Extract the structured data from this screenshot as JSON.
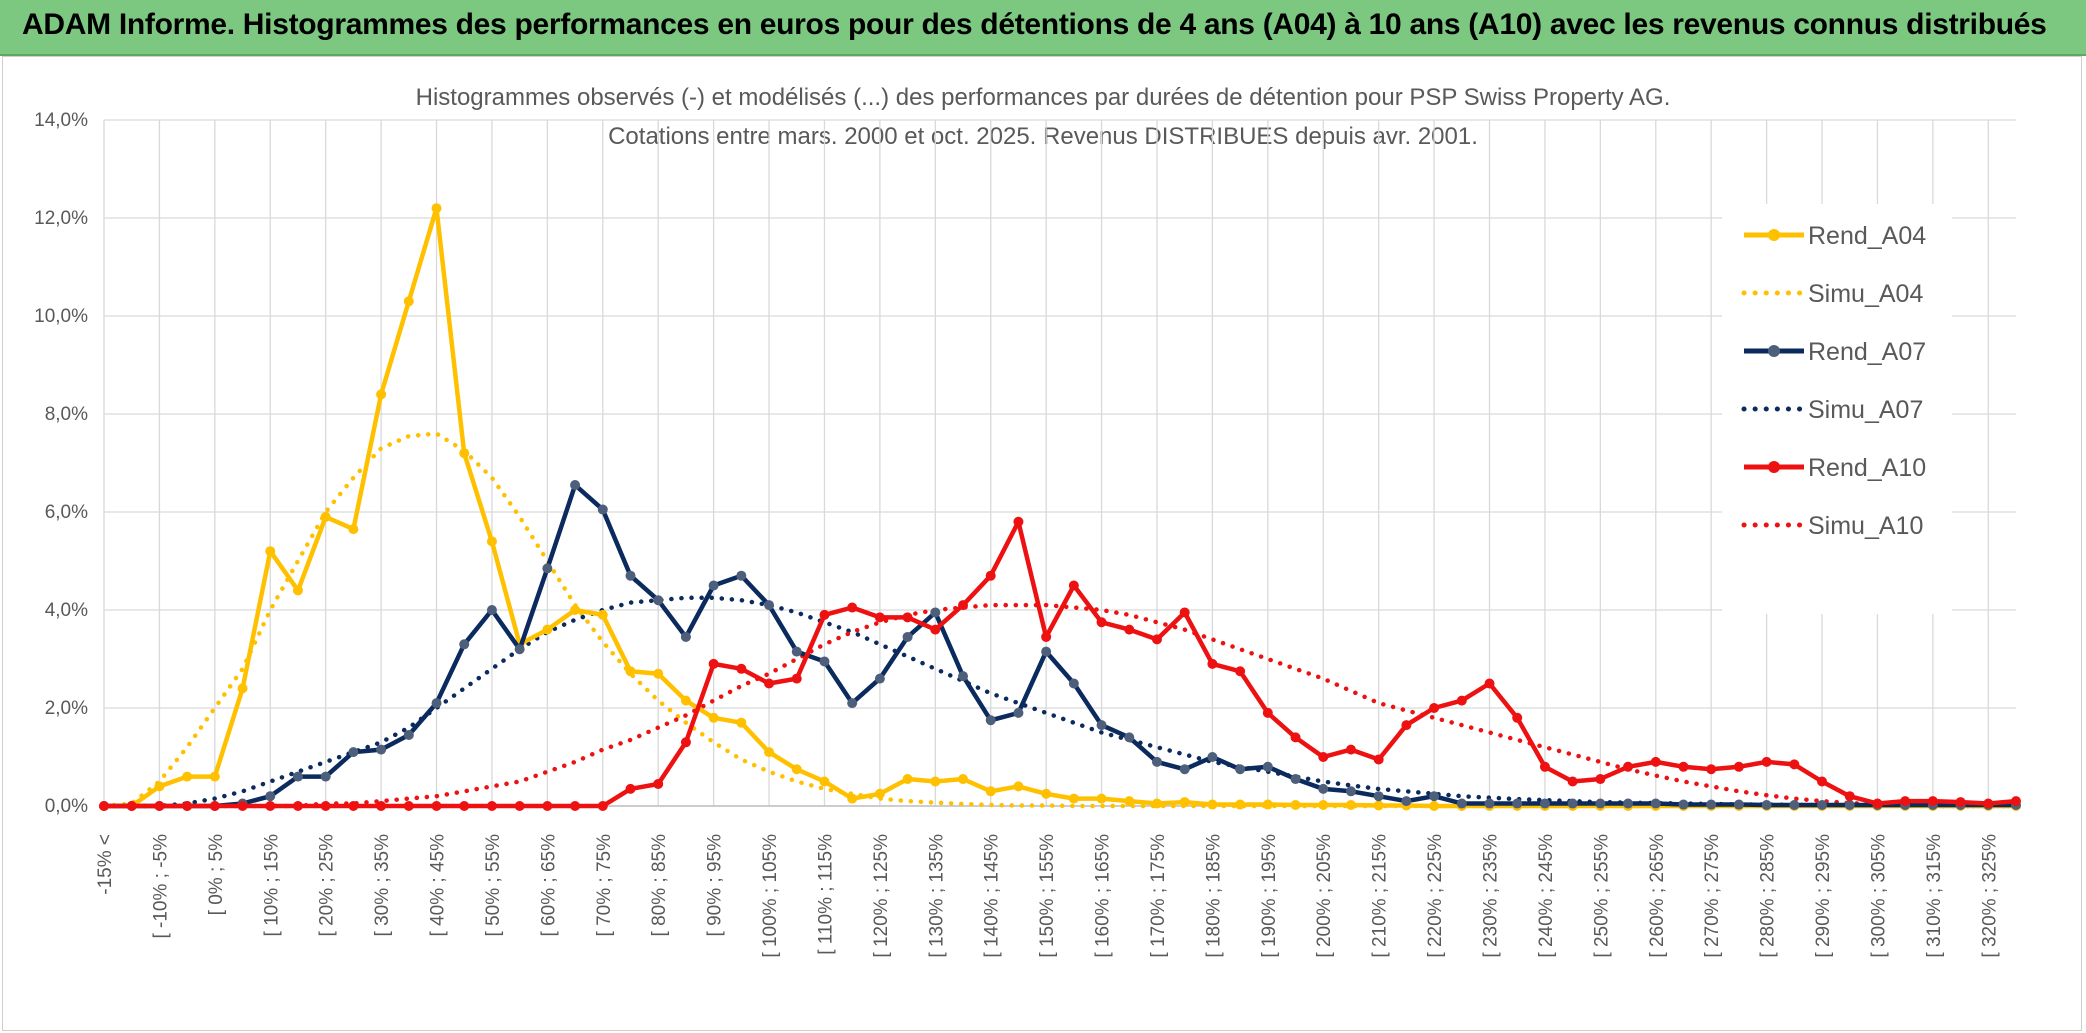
{
  "banner": {
    "title": "ADAM Informe. Histogrammes des performances en euros pour des détentions de 4 ans (A04) à 10 ans (A10) avec les revenus connus distribués"
  },
  "chart_data": {
    "type": "line",
    "title": "Histogrammes observés (-) et modélisés (...) des performances par durées de détention pour PSP Swiss Property AG.",
    "subtitle": "Cotations entre mars. 2000 et oct. 2025. Revenus DISTRIBUES depuis avr. 2001.",
    "xlabel": "",
    "ylabel": "",
    "ylim": [
      0,
      14
    ],
    "y_ticks": [
      "0,0%",
      "2,0%",
      "4,0%",
      "6,0%",
      "8,0%",
      "10,0%",
      "12,0%",
      "14,0%"
    ],
    "grid": true,
    "legend_position": "right",
    "x_tick_labels": [
      "-15% <",
      "[ -10% ; -5%",
      "[ 0% ; 5%",
      "[ 10% ; 15%",
      "[ 20% ; 25%",
      "[ 30% ; 35%",
      "[ 40% ; 45%",
      "[ 50% ; 55%",
      "[ 60% ; 65%",
      "[ 70% ; 75%",
      "[ 80% ; 85%",
      "[ 90% ; 95%",
      "[ 100% ; 105%",
      "[ 110% ; 115%",
      "[ 120% ; 125%",
      "[ 130% ; 135%",
      "[ 140% ; 145%",
      "[ 150% ; 155%",
      "[ 160% ; 165%",
      "[ 170% ; 175%",
      "[ 180% ; 185%",
      "[ 190% ; 195%",
      "[ 200% ; 205%",
      "[ 210% ; 215%",
      "[ 220% ; 225%",
      "[ 230% ; 235%",
      "[ 240% ; 245%",
      "[ 250% ; 255%",
      "[ 260% ; 265%",
      "[ 270% ; 275%",
      "[ 280% ; 285%",
      "[ 290% ; 295%",
      "[ 300% ; 305%",
      "[ 310% ; 315%",
      "[ 320% ; 325%"
    ],
    "n_categories": 70,
    "series": [
      {
        "name": "Rend_A04",
        "color": "#ffc000",
        "style": "solid",
        "markers": true,
        "values": [
          0,
          0,
          0.4,
          0.6,
          0.6,
          2.4,
          5.2,
          4.4,
          5.9,
          5.65,
          8.4,
          10.3,
          12.2,
          7.2,
          5.4,
          3.3,
          3.6,
          4.0,
          3.9,
          2.75,
          2.7,
          2.15,
          1.8,
          1.7,
          1.1,
          0.75,
          0.5,
          0.15,
          0.25,
          0.55,
          0.5,
          0.55,
          0.3,
          0.4,
          0.25,
          0.15,
          0.15,
          0.1,
          0.05,
          0.08,
          0.03,
          0.03,
          0.03,
          0.02,
          0.02,
          0.02,
          0.01,
          0.01,
          0.0,
          0.0,
          0.0,
          0.0,
          0.0,
          0.0,
          0.0,
          0.0,
          0.0,
          0.0,
          0.0,
          0.0,
          0.0,
          0.0,
          0.0,
          0.0,
          0.0,
          0.0,
          0.0,
          0.0,
          0.0,
          0.0
        ]
      },
      {
        "name": "Simu_A04",
        "color": "#ffc000",
        "style": "dotted",
        "markers": false,
        "values": [
          0,
          0.05,
          0.5,
          1.2,
          2.0,
          2.8,
          4.0,
          5.0,
          6.0,
          6.7,
          7.3,
          7.55,
          7.6,
          7.25,
          6.7,
          5.9,
          5.0,
          4.1,
          3.35,
          2.7,
          2.15,
          1.7,
          1.3,
          0.95,
          0.7,
          0.5,
          0.35,
          0.25,
          0.15,
          0.1,
          0.07,
          0.04,
          0.02,
          0.01,
          0.01,
          0.0,
          0.0,
          0.0,
          0.0,
          0.0,
          0.0,
          0.0,
          0.0,
          0.0,
          0.0,
          0.0,
          0.0,
          0.0,
          0.0,
          0.0,
          0.0,
          0.0,
          0.0,
          0.0,
          0.0,
          0.0,
          0.0,
          0.0,
          0.0,
          0.0,
          0.0,
          0.0,
          0.0,
          0.0,
          0.0,
          0.0,
          0.0,
          0.0,
          0.0,
          0.0
        ]
      },
      {
        "name": "Rend_A07",
        "color": "#0b2a5e",
        "style": "solid",
        "markers": true,
        "values": [
          0,
          0,
          0,
          0,
          0,
          0.05,
          0.2,
          0.6,
          0.6,
          1.1,
          1.15,
          1.45,
          2.1,
          3.3,
          4.0,
          3.2,
          4.85,
          6.55,
          6.05,
          4.7,
          4.2,
          3.45,
          4.5,
          4.7,
          4.1,
          3.15,
          2.95,
          2.1,
          2.6,
          3.45,
          3.95,
          2.65,
          1.75,
          1.9,
          3.15,
          2.5,
          1.65,
          1.4,
          0.9,
          0.75,
          1.0,
          0.75,
          0.8,
          0.55,
          0.35,
          0.3,
          0.2,
          0.1,
          0.2,
          0.05,
          0.05,
          0.05,
          0.05,
          0.05,
          0.05,
          0.05,
          0.05,
          0.03,
          0.03,
          0.03,
          0.02,
          0.02,
          0.02,
          0.02,
          0.02,
          0.02,
          0.02,
          0.02,
          0.02,
          0.02
        ]
      },
      {
        "name": "Simu_A07",
        "color": "#0b2a5e",
        "style": "dotted",
        "markers": false,
        "values": [
          0,
          0,
          0,
          0.05,
          0.15,
          0.3,
          0.5,
          0.7,
          0.9,
          1.1,
          1.3,
          1.6,
          2.0,
          2.4,
          2.8,
          3.2,
          3.55,
          3.8,
          4.0,
          4.15,
          4.2,
          4.25,
          4.25,
          4.2,
          4.1,
          3.95,
          3.75,
          3.55,
          3.3,
          3.05,
          2.8,
          2.55,
          2.3,
          2.1,
          1.9,
          1.7,
          1.5,
          1.35,
          1.2,
          1.05,
          0.9,
          0.8,
          0.7,
          0.6,
          0.5,
          0.42,
          0.35,
          0.3,
          0.25,
          0.2,
          0.17,
          0.14,
          0.12,
          0.1,
          0.08,
          0.07,
          0.06,
          0.05,
          0.04,
          0.03,
          0.03,
          0.02,
          0.02,
          0.01,
          0.01,
          0.01,
          0.0,
          0.0,
          0.0,
          0.0
        ]
      },
      {
        "name": "Rend_A10",
        "color": "#ee1111",
        "style": "solid",
        "markers": true,
        "values": [
          0,
          0,
          0,
          0,
          0,
          0,
          0,
          0,
          0,
          0,
          0,
          0,
          0,
          0,
          0,
          0,
          0,
          0,
          0,
          0.35,
          0.45,
          1.3,
          2.9,
          2.8,
          2.5,
          2.6,
          3.9,
          4.05,
          3.85,
          3.85,
          3.6,
          4.1,
          4.7,
          5.8,
          3.45,
          4.5,
          3.75,
          3.6,
          3.4,
          3.95,
          2.9,
          2.75,
          1.9,
          1.4,
          1.0,
          1.15,
          0.95,
          1.65,
          2.0,
          2.15,
          2.5,
          1.8,
          0.8,
          0.5,
          0.55,
          0.8,
          0.9,
          0.8,
          0.75,
          0.8,
          0.9,
          0.85,
          0.5,
          0.2,
          0.05,
          0.1,
          0.1,
          0.08,
          0.05,
          0.1
        ]
      },
      {
        "name": "Simu_A10",
        "color": "#ee1111",
        "style": "dotted",
        "markers": false,
        "values": [
          0,
          0,
          0,
          0,
          0,
          0,
          0,
          0,
          0.05,
          0.05,
          0.1,
          0.15,
          0.2,
          0.3,
          0.4,
          0.5,
          0.7,
          0.9,
          1.15,
          1.35,
          1.6,
          1.85,
          2.15,
          2.45,
          2.7,
          3.0,
          3.3,
          3.55,
          3.75,
          3.9,
          4.0,
          4.05,
          4.1,
          4.1,
          4.1,
          4.05,
          4.0,
          3.9,
          3.75,
          3.6,
          3.4,
          3.2,
          3.0,
          2.8,
          2.6,
          2.35,
          2.1,
          1.95,
          1.8,
          1.65,
          1.5,
          1.35,
          1.2,
          1.05,
          0.9,
          0.75,
          0.62,
          0.5,
          0.4,
          0.3,
          0.22,
          0.15,
          0.1,
          0.06,
          0.04,
          0.02,
          0.01,
          0.0,
          0.0,
          0.0
        ]
      }
    ]
  }
}
